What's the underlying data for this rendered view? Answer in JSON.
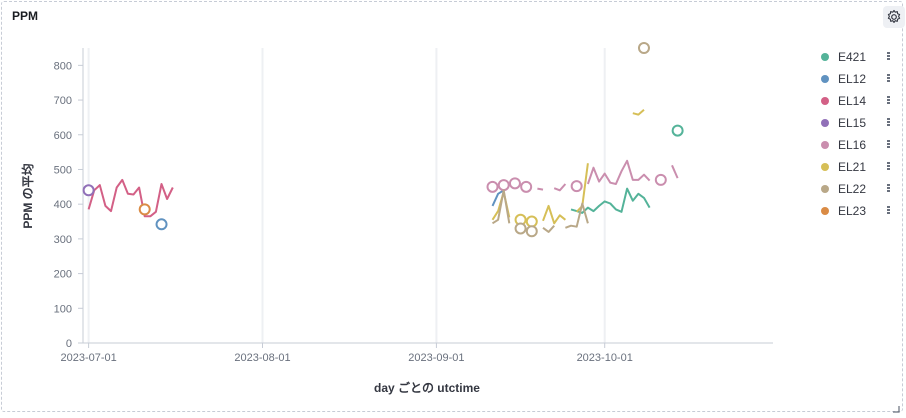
{
  "panel": {
    "title": "PPM"
  },
  "chart_data": {
    "type": "line",
    "xlabel": "day ごとの utctime",
    "ylabel": "PPM の平均",
    "ylim": [
      0,
      850
    ],
    "yticks": [
      0,
      100,
      200,
      300,
      400,
      500,
      600,
      700,
      800
    ],
    "xlim": [
      "2023-06-30",
      "2023-10-31"
    ],
    "xticks": [
      "2023-07-01",
      "2023-08-01",
      "2023-09-01",
      "2023-10-01"
    ],
    "grid": "vertical",
    "legend_position": "right",
    "series": [
      {
        "name": "E421",
        "color": "#54b399",
        "points": [
          [
            "2023-09-25",
            385
          ],
          [
            "2023-09-26",
            380
          ],
          [
            "2023-09-27",
            375
          ],
          [
            "2023-09-28",
            390
          ],
          [
            "2023-09-29",
            380
          ],
          [
            "2023-09-30",
            395
          ],
          [
            "2023-10-01",
            408
          ],
          [
            "2023-10-02",
            402
          ],
          [
            "2023-10-03",
            385
          ],
          [
            "2023-10-04",
            378
          ],
          [
            "2023-10-05",
            445
          ],
          [
            "2023-10-06",
            410
          ],
          [
            "2023-10-07",
            430
          ],
          [
            "2023-10-08",
            418
          ],
          [
            "2023-10-09",
            390
          ],
          [
            "2023-10-14",
            612
          ]
        ]
      },
      {
        "name": "EL12",
        "color": "#6092c0",
        "points": [
          [
            "2023-07-14",
            342
          ],
          [
            "2023-09-11",
            395
          ],
          [
            "2023-09-12",
            430
          ],
          [
            "2023-09-13",
            440
          ]
        ]
      },
      {
        "name": "EL14",
        "color": "#d36086",
        "points": [
          [
            "2023-07-01",
            385
          ],
          [
            "2023-07-02",
            440
          ],
          [
            "2023-07-03",
            455
          ],
          [
            "2023-07-04",
            395
          ],
          [
            "2023-07-05",
            380
          ],
          [
            "2023-07-06",
            448
          ],
          [
            "2023-07-07",
            470
          ],
          [
            "2023-07-08",
            430
          ],
          [
            "2023-07-09",
            428
          ],
          [
            "2023-07-10",
            448
          ],
          [
            "2023-07-11",
            365
          ],
          [
            "2023-07-12",
            365
          ],
          [
            "2023-07-13",
            378
          ],
          [
            "2023-07-14",
            458
          ],
          [
            "2023-07-15",
            415
          ],
          [
            "2023-07-16",
            448
          ]
        ]
      },
      {
        "name": "EL15",
        "color": "#9170b8",
        "points": [
          [
            "2023-07-01",
            440
          ]
        ]
      },
      {
        "name": "EL16",
        "color": "#ca8eae",
        "points": [
          [
            "2023-09-11",
            450
          ],
          [
            "2023-09-13",
            455
          ],
          [
            "2023-09-15",
            460
          ],
          [
            "2023-09-17",
            450
          ],
          [
            "2023-09-19",
            445
          ],
          [
            "2023-09-20",
            442
          ],
          [
            "2023-09-22",
            446
          ],
          [
            "2023-09-23",
            440
          ],
          [
            "2023-09-24",
            458
          ],
          [
            "2023-09-26",
            452
          ],
          [
            "2023-09-28",
            458
          ],
          [
            "2023-09-29",
            505
          ],
          [
            "2023-09-30",
            465
          ],
          [
            "2023-10-01",
            488
          ],
          [
            "2023-10-02",
            462
          ],
          [
            "2023-10-03",
            458
          ],
          [
            "2023-10-04",
            495
          ],
          [
            "2023-10-05",
            525
          ],
          [
            "2023-10-06",
            470
          ],
          [
            "2023-10-07",
            470
          ],
          [
            "2023-10-08",
            485
          ],
          [
            "2023-10-09",
            468
          ],
          [
            "2023-10-11",
            470
          ],
          [
            "2023-10-13",
            512
          ],
          [
            "2023-10-14",
            475
          ]
        ]
      },
      {
        "name": "EL21",
        "color": "#d6bf57",
        "points": [
          [
            "2023-09-11",
            355
          ],
          [
            "2023-09-12",
            380
          ],
          [
            "2023-09-13",
            435
          ],
          [
            "2023-09-14",
            362
          ],
          [
            "2023-09-16",
            355
          ],
          [
            "2023-09-18",
            350
          ],
          [
            "2023-09-20",
            352
          ],
          [
            "2023-09-21",
            395
          ],
          [
            "2023-09-22",
            345
          ],
          [
            "2023-09-23",
            368
          ],
          [
            "2023-09-24",
            355
          ],
          [
            "2023-09-26",
            378
          ],
          [
            "2023-09-27",
            395
          ],
          [
            "2023-09-28",
            518
          ],
          [
            "2023-10-06",
            662
          ],
          [
            "2023-10-07",
            658
          ],
          [
            "2023-10-08",
            672
          ]
        ]
      },
      {
        "name": "EL22",
        "color": "#b9a888",
        "points": [
          [
            "2023-09-11",
            345
          ],
          [
            "2023-09-12",
            355
          ],
          [
            "2023-09-13",
            440
          ],
          [
            "2023-09-14",
            345
          ],
          [
            "2023-09-16",
            330
          ],
          [
            "2023-09-18",
            322
          ],
          [
            "2023-09-20",
            332
          ],
          [
            "2023-09-21",
            320
          ],
          [
            "2023-09-22",
            338
          ],
          [
            "2023-09-24",
            332
          ],
          [
            "2023-09-25",
            338
          ],
          [
            "2023-09-26",
            335
          ],
          [
            "2023-09-27",
            402
          ],
          [
            "2023-09-28",
            345
          ],
          [
            "2023-10-08",
            850
          ]
        ]
      },
      {
        "name": "EL23",
        "color": "#da8b45",
        "points": [
          [
            "2023-07-11",
            385
          ]
        ]
      }
    ]
  }
}
